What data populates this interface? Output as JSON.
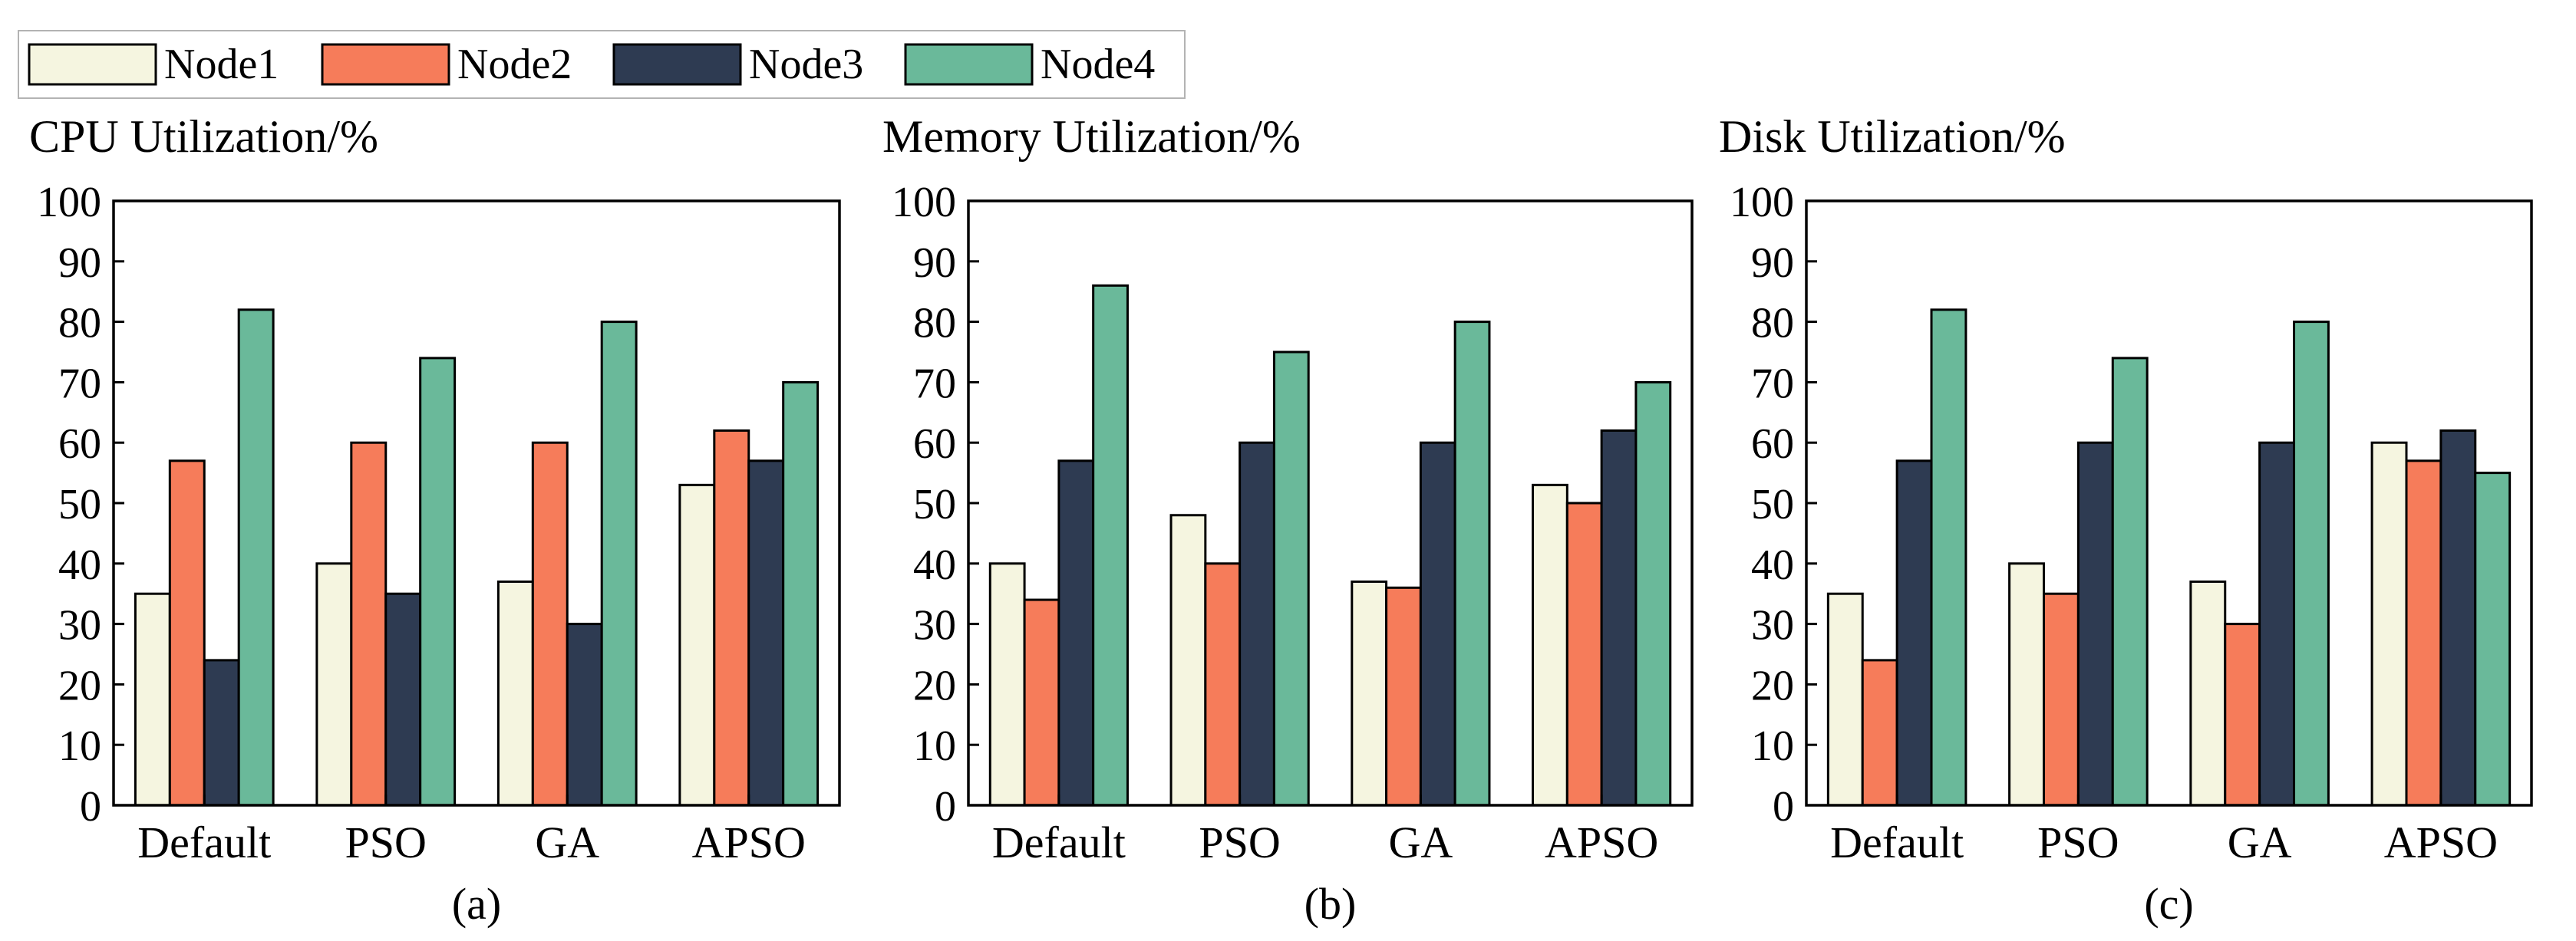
{
  "legend": {
    "items": [
      {
        "name": "Node1",
        "color": "#f5f5e0"
      },
      {
        "name": "Node2",
        "color": "#f67c5a"
      },
      {
        "name": "Node3",
        "color": "#2e3b52"
      },
      {
        "name": "Node4",
        "color": "#6ab99a"
      }
    ]
  },
  "chart_data": [
    {
      "type": "bar",
      "title": "CPU Utilization/%",
      "label": "(a)",
      "categories": [
        "Default",
        "PSO",
        "GA",
        "APSO"
      ],
      "ylim": [
        0,
        100
      ],
      "yticks": [
        0,
        10,
        20,
        30,
        40,
        50,
        60,
        70,
        80,
        90,
        100
      ],
      "series": [
        {
          "name": "Node1",
          "values": [
            35,
            40,
            37,
            53
          ]
        },
        {
          "name": "Node2",
          "values": [
            57,
            60,
            60,
            62
          ]
        },
        {
          "name": "Node3",
          "values": [
            24,
            35,
            30,
            57
          ]
        },
        {
          "name": "Node4",
          "values": [
            82,
            74,
            80,
            70
          ]
        }
      ]
    },
    {
      "type": "bar",
      "title": "Memory Utilization/%",
      "label": "(b)",
      "categories": [
        "Default",
        "PSO",
        "GA",
        "APSO"
      ],
      "ylim": [
        0,
        100
      ],
      "yticks": [
        0,
        10,
        20,
        30,
        40,
        50,
        60,
        70,
        80,
        90,
        100
      ],
      "series": [
        {
          "name": "Node1",
          "values": [
            40,
            48,
            37,
            53
          ]
        },
        {
          "name": "Node2",
          "values": [
            34,
            40,
            36,
            50
          ]
        },
        {
          "name": "Node3",
          "values": [
            57,
            60,
            60,
            62
          ]
        },
        {
          "name": "Node4",
          "values": [
            86,
            75,
            80,
            70
          ]
        }
      ]
    },
    {
      "type": "bar",
      "title": "Disk Utilization/%",
      "label": "(c)",
      "categories": [
        "Default",
        "PSO",
        "GA",
        "APSO"
      ],
      "ylim": [
        0,
        100
      ],
      "yticks": [
        0,
        10,
        20,
        30,
        40,
        50,
        60,
        70,
        80,
        90,
        100
      ],
      "series": [
        {
          "name": "Node1",
          "values": [
            35,
            40,
            37,
            60
          ]
        },
        {
          "name": "Node2",
          "values": [
            24,
            35,
            30,
            57
          ]
        },
        {
          "name": "Node3",
          "values": [
            57,
            60,
            60,
            62
          ]
        },
        {
          "name": "Node4",
          "values": [
            82,
            74,
            80,
            55
          ]
        }
      ]
    }
  ]
}
